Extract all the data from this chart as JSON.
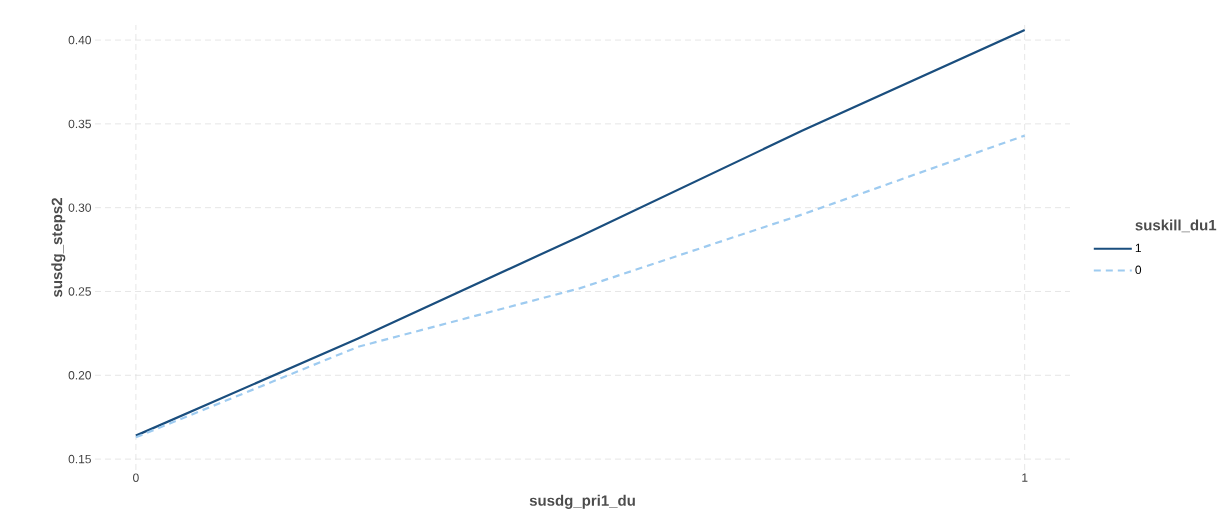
{
  "chart_data": {
    "type": "line",
    "xlabel": "susdg_pri1_du",
    "ylabel": "susdg_steps2",
    "legend_title": "suskill_du1",
    "x": [
      0,
      0.25,
      0.5,
      0.75,
      1
    ],
    "series": [
      {
        "name": "1",
        "color": "#1a4e7e",
        "line_style": "solid",
        "values": [
          0.164,
          0.222,
          0.283,
          0.346,
          0.406
        ]
      },
      {
        "name": "0",
        "color": "#9ecbf0",
        "line_style": "dashed",
        "values": [
          0.163,
          0.217,
          0.252,
          0.296,
          0.343
        ]
      }
    ],
    "xlim": [
      -0.046,
      1.051
    ],
    "ylim": [
      0.1435,
      0.409
    ],
    "xticks": [
      0,
      1
    ],
    "yticks": [
      {
        "value": 0.15,
        "label": "0.15"
      },
      {
        "value": 0.2,
        "label": "0.20"
      },
      {
        "value": 0.25,
        "label": "0.25"
      },
      {
        "value": 0.3,
        "label": "0.30"
      },
      {
        "value": 0.35,
        "label": "0.35"
      },
      {
        "value": 0.4,
        "label": "0.40"
      }
    ],
    "grid": true,
    "legend": "right",
    "marker": "none"
  }
}
